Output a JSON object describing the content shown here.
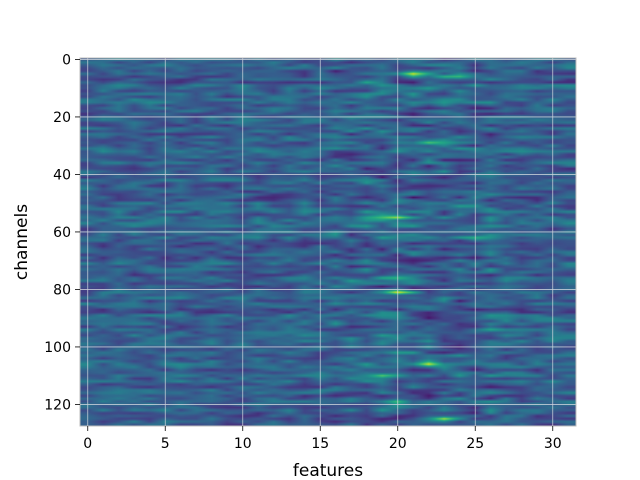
{
  "chart_data": {
    "type": "heatmap",
    "title": "",
    "xlabel": "features",
    "ylabel": "channels",
    "x_range": [
      0,
      31
    ],
    "y_range": [
      0,
      127
    ],
    "y_inverted": true,
    "xlim": [
      -0.5,
      31.5
    ],
    "ylim": [
      127.5,
      -0.5
    ],
    "n_features": 32,
    "n_channels": 128,
    "interpolation": "bilinear",
    "colormap": "viridis",
    "grid": true,
    "x_ticks": [
      {
        "value": 0,
        "label": "0"
      },
      {
        "value": 5,
        "label": "5"
      },
      {
        "value": 10,
        "label": "10"
      },
      {
        "value": 15,
        "label": "15"
      },
      {
        "value": 20,
        "label": "20"
      },
      {
        "value": 25,
        "label": "25"
      },
      {
        "value": 30,
        "label": "30"
      }
    ],
    "y_ticks": [
      {
        "value": 0,
        "label": "0"
      },
      {
        "value": 20,
        "label": "20"
      },
      {
        "value": 40,
        "label": "40"
      },
      {
        "value": 60,
        "label": "60"
      },
      {
        "value": 80,
        "label": "80"
      },
      {
        "value": 100,
        "label": "100"
      },
      {
        "value": 120,
        "label": "120"
      }
    ],
    "hot_spots": [
      {
        "x": 21,
        "y": 5,
        "v": 0.95
      },
      {
        "x": 23.5,
        "y": 6,
        "v": 0.8
      },
      {
        "x": 18,
        "y": 8,
        "v": 0.6
      },
      {
        "x": 22,
        "y": 29,
        "v": 0.75
      },
      {
        "x": 20,
        "y": 55,
        "v": 0.95
      },
      {
        "x": 19,
        "y": 55,
        "v": 0.7
      },
      {
        "x": 24.5,
        "y": 51,
        "v": 0.6
      },
      {
        "x": 25,
        "y": 62,
        "v": 0.65
      },
      {
        "x": 20,
        "y": 81,
        "v": 1.0
      },
      {
        "x": 19.5,
        "y": 76,
        "v": 0.75
      },
      {
        "x": 26,
        "y": 94,
        "v": 0.6
      },
      {
        "x": 20.5,
        "y": 102,
        "v": 0.6
      },
      {
        "x": 22,
        "y": 106,
        "v": 0.95
      },
      {
        "x": 19,
        "y": 110,
        "v": 0.75
      },
      {
        "x": 20,
        "y": 119,
        "v": 0.7
      },
      {
        "x": 23,
        "y": 125,
        "v": 0.9
      }
    ],
    "cold_spots": [
      {
        "x": 22.5,
        "y": 44,
        "v": 0.05
      },
      {
        "x": 21,
        "y": 70,
        "v": 0.08
      },
      {
        "x": 22,
        "y": 90,
        "v": 0.05
      },
      {
        "x": 24,
        "y": 100,
        "v": 0.08
      },
      {
        "x": 21.5,
        "y": 116,
        "v": 0.1
      }
    ],
    "colors": {
      "viridis_stops": [
        "#440154",
        "#482475",
        "#414487",
        "#355f8d",
        "#2a788e",
        "#21918c",
        "#22a884",
        "#44bf70",
        "#7ad151",
        "#bddf26",
        "#fde725"
      ],
      "grid": "#cfd6dd",
      "frame": "#bdbdbd"
    }
  }
}
